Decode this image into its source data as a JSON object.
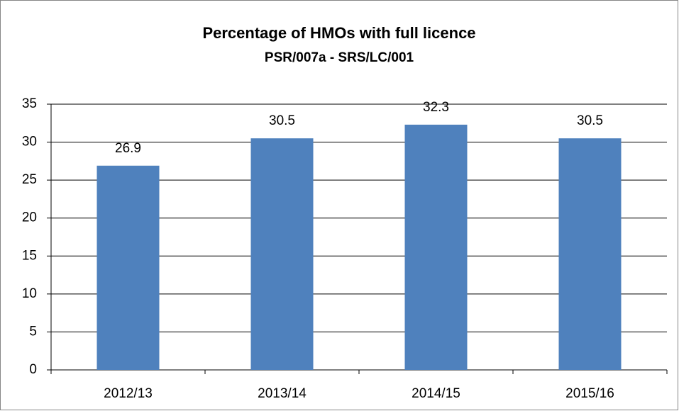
{
  "chart_data": {
    "type": "bar",
    "title": "Percentage of HMOs with full licence",
    "subtitle": "PSR/007a - SRS/LC/001",
    "categories": [
      "2012/13",
      "2013/14",
      "2014/15",
      "2015/16"
    ],
    "values": [
      26.9,
      30.5,
      32.3,
      30.5
    ],
    "color": "#4f81bd",
    "ylim": [
      0,
      35
    ],
    "yticks": [
      0,
      5,
      10,
      15,
      20,
      25,
      30,
      35
    ],
    "grid": true
  }
}
